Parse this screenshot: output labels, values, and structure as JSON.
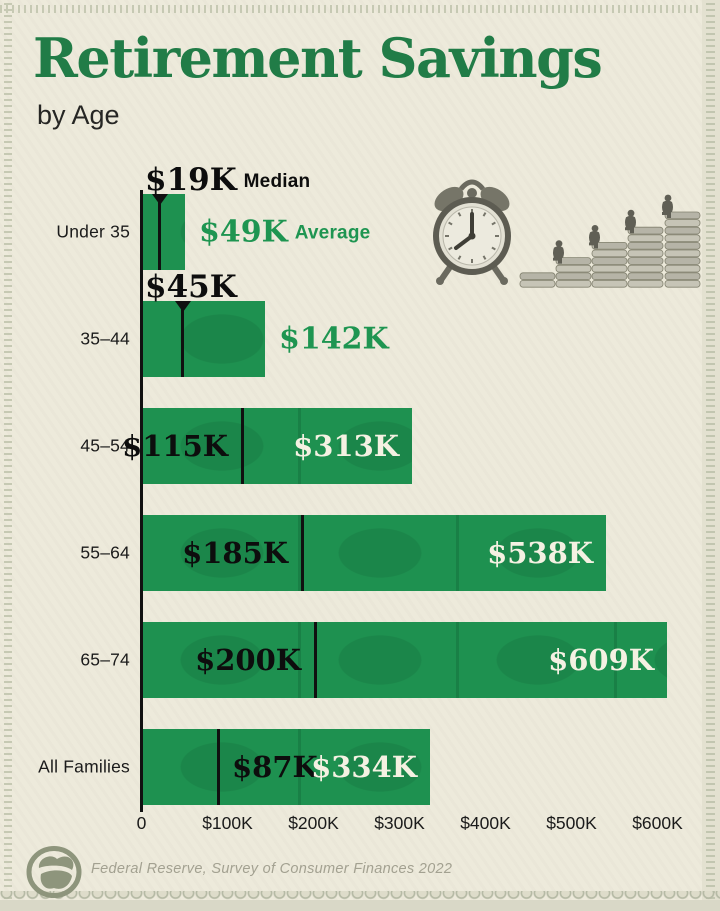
{
  "title": "Retirement Savings",
  "subtitle": "by Age",
  "legend": {
    "median": "Median",
    "average": "Average"
  },
  "footer": {
    "source": "Federal Reserve, Survey of Consumer Finances 2022"
  },
  "colors": {
    "background": "#edeadb",
    "bar_green": "#1e9150",
    "title_green": "#217c47",
    "average_text_green": "#1e9551",
    "ink": "#141414",
    "bar_text_light": "#f4f1e2",
    "edge_gray_green": "#c6c9b3"
  },
  "icons": {
    "alarm-clock-illustration": "grayscale alarm clock drawing",
    "coin-stacks-illustration": "ascending coin stacks with tiny seated figures",
    "logo": "round gray-green emblem"
  },
  "chart_data": {
    "type": "bar",
    "orientation": "horizontal",
    "title": "Retirement Savings by Age",
    "unit": "USD thousands",
    "categories": [
      "Under 35",
      "35–44",
      "45–54",
      "55–64",
      "65–74",
      "All Families"
    ],
    "series": [
      {
        "name": "Median",
        "values": [
          19,
          45,
          115,
          185,
          200,
          87
        ],
        "labels": [
          "$19K",
          "$45K",
          "$115K",
          "$185K",
          "$200K",
          "$87K"
        ]
      },
      {
        "name": "Average",
        "values": [
          49,
          142,
          313,
          538,
          609,
          334
        ],
        "labels": [
          "$49K",
          "$142K",
          "$313K",
          "$538K",
          "$609K",
          "$334K"
        ]
      }
    ],
    "x_ticks": [
      "0",
      "$100K",
      "$200K",
      "$300K",
      "$400K",
      "$500K",
      "$600K"
    ],
    "xlim": [
      0,
      600
    ],
    "grid": false,
    "legend_position": "inline-first-row"
  }
}
